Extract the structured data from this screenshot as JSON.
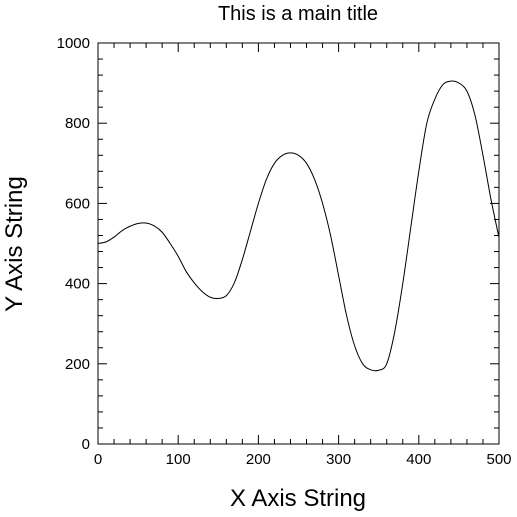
{
  "chart_data": {
    "type": "line",
    "title": "This is a main title",
    "xlabel": "X Axis String",
    "ylabel": "Y Axis String",
    "xlim": [
      0,
      500
    ],
    "ylim": [
      0,
      1000
    ],
    "xticks": [
      0,
      100,
      200,
      300,
      400,
      500
    ],
    "yticks": [
      0,
      200,
      400,
      600,
      800,
      1000
    ],
    "xtick_labels": [
      "0",
      "100",
      "200",
      "300",
      "400",
      "500"
    ],
    "ytick_labels": [
      "0",
      "200",
      "400",
      "600",
      "800",
      "1000"
    ],
    "x_minor_step": 20,
    "y_minor_step": 40,
    "grid": false,
    "line_color": "#000000",
    "series": [
      {
        "x": [
          0,
          10,
          20,
          30,
          40,
          50,
          60,
          70,
          80,
          90,
          100,
          110,
          120,
          130,
          140,
          150,
          160,
          170,
          180,
          190,
          200,
          210,
          220,
          230,
          240,
          250,
          260,
          270,
          280,
          290,
          300,
          310,
          320,
          330,
          340,
          350,
          360,
          370,
          380,
          390,
          400,
          410,
          420,
          430,
          440,
          450,
          460,
          470,
          480,
          490,
          500
        ],
        "y": [
          500,
          504,
          516,
          532,
          543,
          550,
          551,
          544,
          528,
          500,
          468,
          430,
          402,
          380,
          366,
          363,
          370,
          402,
          460,
          530,
          600,
          660,
          700,
          720,
          726,
          720,
          700,
          660,
          600,
          520,
          420,
          320,
          245,
          200,
          185,
          184,
          200,
          280,
          400,
          540,
          680,
          800,
          860,
          896,
          905,
          900,
          880,
          820,
          720,
          610,
          515
        ]
      }
    ]
  }
}
